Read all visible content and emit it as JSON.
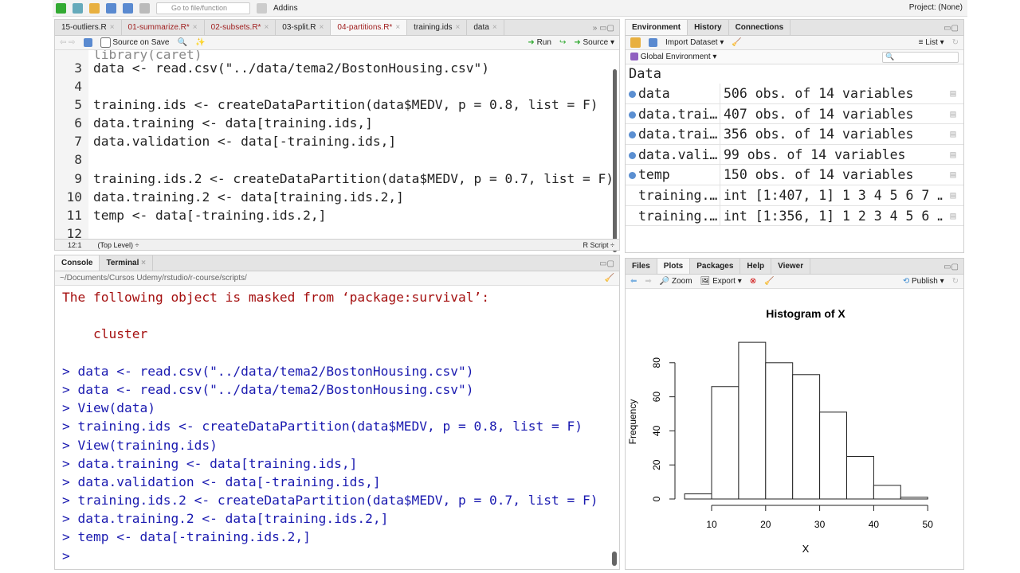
{
  "toolbar": {
    "goto_placeholder": "Go to file/function",
    "addins": "Addins",
    "project": "Project: (None)"
  },
  "editor": {
    "tabs": [
      {
        "label": "15-outliers.R",
        "modified": false
      },
      {
        "label": "01-summarize.R*",
        "modified": true
      },
      {
        "label": "02-subsets.R*",
        "modified": true
      },
      {
        "label": "03-split.R",
        "modified": false
      },
      {
        "label": "04-partitions.R*",
        "modified": true,
        "active": true
      },
      {
        "label": "training.ids",
        "modified": false
      },
      {
        "label": "data",
        "modified": false
      }
    ],
    "source_on_save": "Source on Save",
    "run": "Run",
    "source": "Source",
    "lines": [
      {
        "n": "3",
        "t": "data <- read.csv(\"../data/tema2/BostonHousing.csv\")"
      },
      {
        "n": "4",
        "t": ""
      },
      {
        "n": "5",
        "t": "training.ids <- createDataPartition(data$MEDV, p = 0.8, list = F)"
      },
      {
        "n": "6",
        "t": "data.training <- data[training.ids,]"
      },
      {
        "n": "7",
        "t": "data.validation <- data[-training.ids,]"
      },
      {
        "n": "8",
        "t": ""
      },
      {
        "n": "9",
        "t": "training.ids.2 <- createDataPartition(data$MEDV, p = 0.7, list = F)"
      },
      {
        "n": "10",
        "t": "data.training.2 <- data[training.ids.2,]"
      },
      {
        "n": "11",
        "t": "temp <- data[-training.ids.2,]"
      },
      {
        "n": "12",
        "t": ""
      }
    ],
    "status_pos": "12:1",
    "status_scope": "(Top Level) ÷",
    "status_type": "R Script ÷"
  },
  "console": {
    "tabs": [
      "Console",
      "Terminal"
    ],
    "path": "~/Documents/Cursos Udemy/rstudio/r-course/scripts/",
    "lines": [
      {
        "t": "The following object is masked from ‘package:survival’:",
        "c": "msg"
      },
      {
        "t": "",
        "c": "msg"
      },
      {
        "t": "    cluster",
        "c": "msg"
      },
      {
        "t": "",
        "c": "msg"
      },
      {
        "t": "> data <- read.csv(\"../data/tema2/BostonHousing.csv\")",
        "c": "cmd"
      },
      {
        "t": "> data <- read.csv(\"../data/tema2/BostonHousing.csv\")",
        "c": "cmd"
      },
      {
        "t": "> View(data)",
        "c": "cmd"
      },
      {
        "t": "> training.ids <- createDataPartition(data$MEDV, p = 0.8, list = F)",
        "c": "cmd"
      },
      {
        "t": "> View(training.ids)",
        "c": "cmd"
      },
      {
        "t": "> data.training <- data[training.ids,]",
        "c": "cmd"
      },
      {
        "t": "> data.validation <- data[-training.ids,]",
        "c": "cmd"
      },
      {
        "t": "> training.ids.2 <- createDataPartition(data$MEDV, p = 0.7, list = F)",
        "c": "cmd"
      },
      {
        "t": "> data.training.2 <- data[training.ids.2,]",
        "c": "cmd"
      },
      {
        "t": "> temp <- data[-training.ids.2,]",
        "c": "cmd"
      },
      {
        "t": "> ",
        "c": "cmd"
      }
    ]
  },
  "environment": {
    "tabs": [
      "Environment",
      "History",
      "Connections"
    ],
    "import": "Import Dataset",
    "list": "List",
    "scope": "Global Environment",
    "section": "Data",
    "rows": [
      {
        "name": "data",
        "value": "506 obs. of 14 variables",
        "dot": true
      },
      {
        "name": "data.trai…",
        "value": "407 obs. of 14 variables",
        "dot": true
      },
      {
        "name": "data.trai…",
        "value": "356 obs. of 14 variables",
        "dot": true
      },
      {
        "name": "data.vali…",
        "value": "99 obs. of 14 variables",
        "dot": true
      },
      {
        "name": "temp",
        "value": "150 obs. of 14 variables",
        "dot": true
      },
      {
        "name": "training.…",
        "value": "int [1:407, 1] 1 3 4 5 6 7 …",
        "dot": false
      },
      {
        "name": "training.…",
        "value": "int [1:356, 1] 1 2 3 4 5 6 …",
        "dot": false
      }
    ]
  },
  "plots": {
    "tabs": [
      "Files",
      "Plots",
      "Packages",
      "Help",
      "Viewer"
    ],
    "zoom": "Zoom",
    "export": "Export",
    "publish": "Publish"
  },
  "chart_data": {
    "type": "bar",
    "title": "Histogram of X",
    "xlabel": "X",
    "ylabel": "Frequency",
    "bins": [
      [
        5,
        10
      ],
      [
        10,
        15
      ],
      [
        15,
        20
      ],
      [
        20,
        25
      ],
      [
        25,
        30
      ],
      [
        30,
        35
      ],
      [
        35,
        40
      ],
      [
        40,
        45
      ],
      [
        45,
        50
      ]
    ],
    "values": [
      3,
      66,
      92,
      80,
      73,
      51,
      25,
      8,
      1
    ],
    "xticks": [
      "10",
      "20",
      "30",
      "40",
      "50"
    ],
    "yticks": [
      "0",
      "20",
      "40",
      "60",
      "80"
    ],
    "xlim": [
      10,
      50
    ],
    "ylim": [
      0,
      80
    ]
  }
}
